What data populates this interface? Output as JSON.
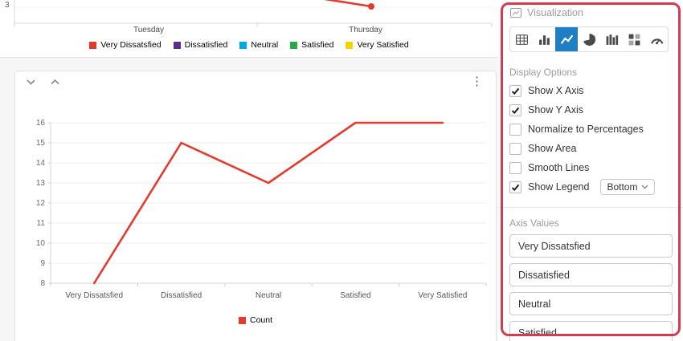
{
  "colors": {
    "line_red": "#e5392d",
    "annotation_red": "#d63a4e",
    "selected_viz_bg": "#1f7fc4"
  },
  "icons": {
    "visualization-icon": "picture-with-line-chart",
    "collapse-icon": "chevron-down",
    "expand-icon": "chevron-up",
    "more-options-icon": "vertical-ellipsis",
    "dropdown-caret": "chevron-down",
    "checkbox-check": "check-mark"
  },
  "top_chart": {
    "visible_y_tick": "3",
    "x_axis_labels": [
      "Tuesday",
      "Thursday"
    ],
    "legend": [
      {
        "label": "Very Dissatsfied",
        "color": "#e0392b"
      },
      {
        "label": "Dissatisfied",
        "color": "#5b2d8e"
      },
      {
        "label": "Neutral",
        "color": "#00a9e0"
      },
      {
        "label": "Satisfied",
        "color": "#2aa84a"
      },
      {
        "label": "Very Satisfied",
        "color": "#f2d600"
      }
    ]
  },
  "chart_data": [
    {
      "type": "line",
      "title": "",
      "xlabel": "",
      "ylabel": "",
      "categories": [
        "Very Dissatsfied",
        "Dissatisfied",
        "Neutral",
        "Satisfied",
        "Very Satisfied"
      ],
      "series": [
        {
          "name": "Count",
          "color": "#e5392d",
          "values": [
            8,
            15,
            13,
            16,
            16
          ]
        }
      ],
      "ylim": [
        8,
        16
      ],
      "yticks": [
        8,
        9,
        10,
        11,
        12,
        13,
        14,
        15,
        16
      ],
      "grid": true,
      "legend_position": "bottom"
    },
    {
      "type": "line",
      "note": "partially visible chart cut off at top of screen",
      "visible_y_ticks": [
        3
      ],
      "visible_x_labels": [
        "Tuesday",
        "Thursday"
      ],
      "series_names": [
        "Very Dissatsfied",
        "Dissatisfied",
        "Neutral",
        "Satisfied",
        "Very Satisfied"
      ],
      "legend_position": "bottom"
    }
  ],
  "panel": {
    "title": "Visualization",
    "viz_types": [
      {
        "name": "table",
        "selected": false
      },
      {
        "name": "bar-chart",
        "selected": false
      },
      {
        "name": "line-chart",
        "selected": true
      },
      {
        "name": "pie-chart",
        "selected": false
      },
      {
        "name": "column-chart",
        "selected": false
      },
      {
        "name": "pivot-table",
        "selected": false
      },
      {
        "name": "gauge",
        "selected": false
      }
    ],
    "display_options": {
      "heading": "Display Options",
      "options": [
        {
          "label": "Show X Axis",
          "checked": true
        },
        {
          "label": "Show Y Axis",
          "checked": true
        },
        {
          "label": "Normalize to Percentages",
          "checked": false
        },
        {
          "label": "Show Area",
          "checked": false
        },
        {
          "label": "Smooth Lines",
          "checked": false
        },
        {
          "label": "Show Legend",
          "checked": true,
          "dropdown": "Bottom"
        }
      ]
    },
    "axis_values": {
      "heading": "Axis Values",
      "items": [
        "Very Dissatsfied",
        "Dissatisfied",
        "Neutral",
        "Satisfied"
      ]
    }
  }
}
